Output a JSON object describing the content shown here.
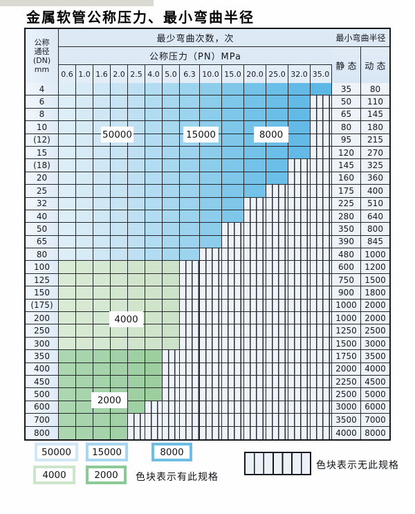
{
  "title": "金属软管公称压力、最小弯曲半径",
  "table": {
    "header": {
      "dn_label_lines": [
        "公称",
        "通径",
        "(DN)",
        "mm"
      ],
      "bend_times_label": "最少弯曲次数，次",
      "pressure_label": "公称压力（PN）MPa",
      "radius_label": "最小弯曲半径",
      "static_label": "静 态",
      "dynamic_label": "动 态",
      "pressures": [
        "0.6",
        "1.0",
        "1.6",
        "2.0",
        "2.5",
        "4.0",
        "5.0",
        "6.3",
        "10.0",
        "15.0",
        "20.0",
        "25.0",
        "32.0",
        "35.0"
      ]
    },
    "rows": [
      {
        "dn": "4",
        "shade": "blue",
        "colored_columns": 14,
        "max_pn": "35.0",
        "static": "35",
        "dynamic": "80"
      },
      {
        "dn": "6",
        "shade": "blue",
        "colored_columns": 13,
        "max_pn": "32.0",
        "static": "50",
        "dynamic": "110"
      },
      {
        "dn": "8",
        "shade": "blue",
        "colored_columns": 13,
        "max_pn": "32.0",
        "static": "65",
        "dynamic": "145"
      },
      {
        "dn": "10",
        "shade": "blue",
        "colored_columns": 13,
        "max_pn": "32.0",
        "static": "80",
        "dynamic": "180"
      },
      {
        "dn": "(12)",
        "shade": "blue",
        "colored_columns": 13,
        "max_pn": "32.0",
        "static": "95",
        "dynamic": "215"
      },
      {
        "dn": "15",
        "shade": "blue",
        "colored_columns": 13,
        "max_pn": "32.0",
        "static": "120",
        "dynamic": "270"
      },
      {
        "dn": "(18)",
        "shade": "blue",
        "colored_columns": 12,
        "max_pn": "25.0",
        "static": "145",
        "dynamic": "325"
      },
      {
        "dn": "20",
        "shade": "blue",
        "colored_columns": 12,
        "max_pn": "25.0",
        "static": "160",
        "dynamic": "360"
      },
      {
        "dn": "25",
        "shade": "blue",
        "colored_columns": 11,
        "max_pn": "20.0",
        "static": "175",
        "dynamic": "400"
      },
      {
        "dn": "32",
        "shade": "blue",
        "colored_columns": 10,
        "max_pn": "15.0",
        "static": "225",
        "dynamic": "510"
      },
      {
        "dn": "40",
        "shade": "blue",
        "colored_columns": 10,
        "max_pn": "15.0",
        "static": "280",
        "dynamic": "640"
      },
      {
        "dn": "50",
        "shade": "blue",
        "colored_columns": 9,
        "max_pn": "10.0",
        "static": "350",
        "dynamic": "800"
      },
      {
        "dn": "65",
        "shade": "blue",
        "colored_columns": 9,
        "max_pn": "10.0",
        "static": "390",
        "dynamic": "845"
      },
      {
        "dn": "80",
        "shade": "blue",
        "colored_columns": 8,
        "max_pn": "6.3",
        "static": "480",
        "dynamic": "1000"
      },
      {
        "dn": "100",
        "shade": "green_light",
        "colored_columns": 7,
        "max_pn": "5.0",
        "static": "600",
        "dynamic": "1200"
      },
      {
        "dn": "125",
        "shade": "green_light",
        "colored_columns": 7,
        "max_pn": "5.0",
        "static": "750",
        "dynamic": "1500"
      },
      {
        "dn": "150",
        "shade": "green_light",
        "colored_columns": 7,
        "max_pn": "5.0",
        "static": "900",
        "dynamic": "1800"
      },
      {
        "dn": "(175)",
        "shade": "green_light",
        "colored_columns": 7,
        "max_pn": "5.0",
        "static": "1000",
        "dynamic": "2000"
      },
      {
        "dn": "200",
        "shade": "green_light",
        "colored_columns": 7,
        "max_pn": "5.0",
        "static": "1000",
        "dynamic": "2000"
      },
      {
        "dn": "250",
        "shade": "green_light",
        "colored_columns": 7,
        "max_pn": "5.0",
        "static": "1250",
        "dynamic": "2500"
      },
      {
        "dn": "300",
        "shade": "green_light",
        "colored_columns": 7,
        "max_pn": "5.0",
        "static": "1500",
        "dynamic": "3000"
      },
      {
        "dn": "350",
        "shade": "green_dark",
        "colored_columns": 6,
        "max_pn": "4.0",
        "static": "1750",
        "dynamic": "3500"
      },
      {
        "dn": "400",
        "shade": "green_dark",
        "colored_columns": 6,
        "max_pn": "4.0",
        "static": "2000",
        "dynamic": "4000"
      },
      {
        "dn": "450",
        "shade": "green_dark",
        "colored_columns": 6,
        "max_pn": "4.0",
        "static": "2250",
        "dynamic": "4500"
      },
      {
        "dn": "500",
        "shade": "green_dark",
        "colored_columns": 6,
        "max_pn": "4.0",
        "static": "2500",
        "dynamic": "5000"
      },
      {
        "dn": "600",
        "shade": "green_dark",
        "colored_columns": 5,
        "max_pn": "2.5",
        "static": "3000",
        "dynamic": "6000"
      },
      {
        "dn": "700",
        "shade": "green_dark",
        "colored_columns": 4,
        "max_pn": "2.0",
        "static": "3500",
        "dynamic": "7000"
      },
      {
        "dn": "800",
        "shade": "green_dark",
        "colored_columns": 4,
        "max_pn": "2.0",
        "static": "4000",
        "dynamic": "8000"
      }
    ]
  },
  "region_labels": [
    "50000",
    "15000",
    "8000",
    "4000",
    "2000"
  ],
  "legend": {
    "items": [
      {
        "label": "50000",
        "color": "#cfe7f6"
      },
      {
        "label": "15000",
        "color": "#a7d7f0"
      },
      {
        "label": "8000",
        "color": "#6dbde5"
      },
      {
        "label": "4000",
        "color": "#cde5cb"
      },
      {
        "label": "2000",
        "color": "#8bca97"
      }
    ],
    "has_spec_text": "色块表示有此规格",
    "no_spec_text": "色块表示无此规格"
  },
  "colors": {
    "grid": "#23262b",
    "header_bg": "#dde9f5",
    "stripe_bg": "#eef3fa",
    "blue_shades": [
      "#ddeef8",
      "#d7ebf7",
      "#d0e8f6",
      "#c8e4f4",
      "#bfe0f3",
      "#b2dcf2",
      "#a7d8f0",
      "#9cd3ef",
      "#8dcdec",
      "#7ec7eb",
      "#73c2e9",
      "#6abee7",
      "#63bae6",
      "#5eb8e5"
    ],
    "green_light_shades": [
      "#d9ead5",
      "#d7e9d3",
      "#d5e8d1",
      "#d3e6cf",
      "#d1e5cd",
      "#cfe4cb",
      "#cde3c9"
    ],
    "green_dark_shades": [
      "#abd6b0",
      "#a8d4ad",
      "#a5d3aa",
      "#a2d1a7",
      "#9fd0a4",
      "#9cce9f"
    ]
  }
}
